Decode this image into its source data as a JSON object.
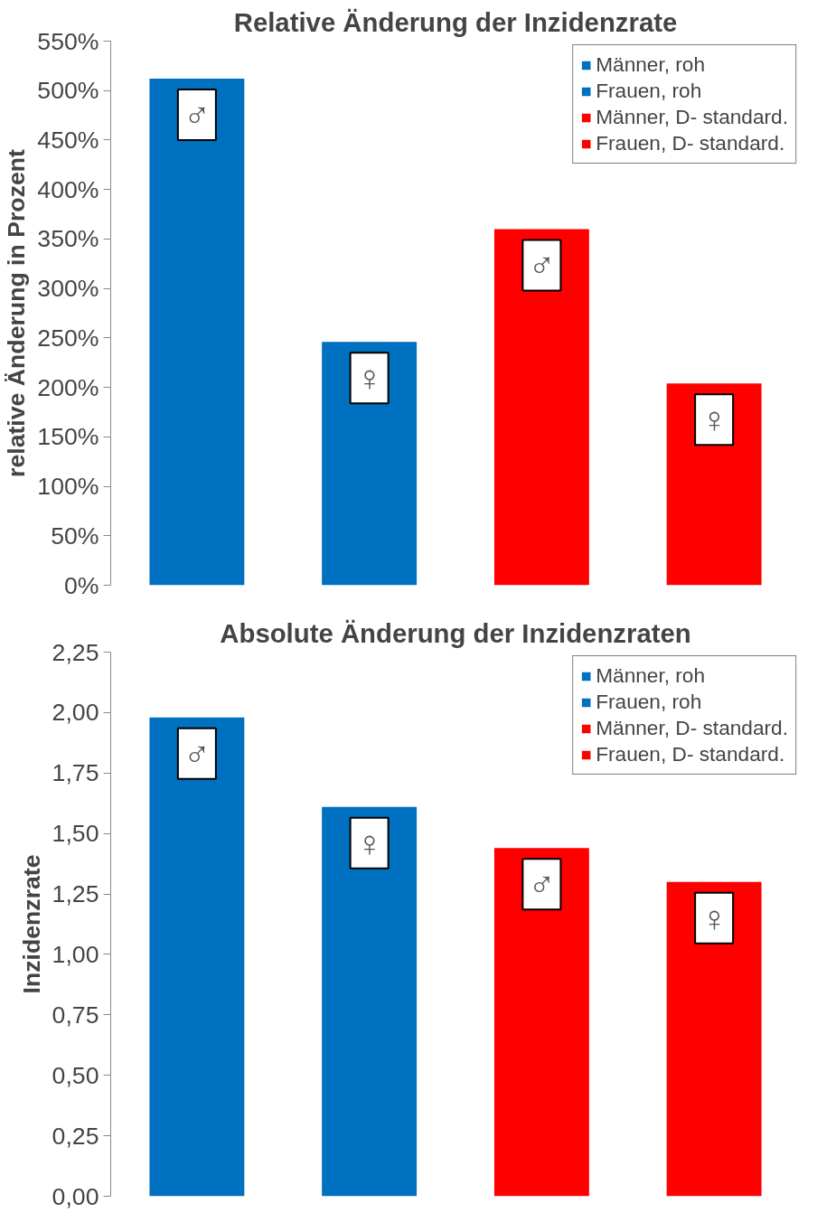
{
  "chart_data": [
    {
      "type": "bar",
      "stacked": true,
      "title": "Relative Änderung der Inzidenzrate",
      "ylabel": "relative Änderung in Prozent",
      "categories": [
        null,
        null,
        null,
        null
      ],
      "series": [
        {
          "name": "Männer, roh",
          "color": "#0070c0",
          "values": [
            512,
            0,
            0,
            0
          ]
        },
        {
          "name": "Frauen, roh",
          "color": "#0070c0",
          "values": [
            0,
            246,
            0,
            0
          ]
        },
        {
          "name": "Männer, D- standard.",
          "color": "#ff0000",
          "values": [
            0,
            0,
            360,
            0
          ]
        },
        {
          "name": "Frauen, D- standard.",
          "color": "#ff0000",
          "values": [
            0,
            0,
            0,
            204
          ]
        }
      ],
      "ylim": [
        0,
        550
      ],
      "yticks": [
        {
          "value": 0,
          "label": "0%"
        },
        {
          "value": 50,
          "label": "50%"
        },
        {
          "value": 100,
          "label": "100%"
        },
        {
          "value": 150,
          "label": "150%"
        },
        {
          "value": 200,
          "label": "200%"
        },
        {
          "value": 250,
          "label": "250%"
        },
        {
          "value": 300,
          "label": "300%"
        },
        {
          "value": 350,
          "label": "350%"
        },
        {
          "value": 400,
          "label": "400%"
        },
        {
          "value": 450,
          "label": "450%"
        },
        {
          "value": 500,
          "label": "500%"
        },
        {
          "value": 550,
          "label": "550%"
        }
      ],
      "annotations": [
        "♂",
        "♀",
        "♂",
        "♀"
      ],
      "legend": "top right",
      "tick_labels": "y"
    },
    {
      "type": "bar",
      "stacked": true,
      "title": "Absolute Änderung der Inzidenzraten",
      "ylabel": "Inzidenzrate",
      "categories": [
        null,
        null,
        null,
        null
      ],
      "series": [
        {
          "name": "Männer, roh",
          "color": "#0070c0",
          "values": [
            1.98,
            0,
            0,
            0
          ]
        },
        {
          "name": "Frauen, roh",
          "color": "#0070c0",
          "values": [
            0,
            1.61,
            0,
            0
          ]
        },
        {
          "name": "Männer, D- standard.",
          "color": "#ff0000",
          "values": [
            0,
            0,
            1.44,
            0
          ]
        },
        {
          "name": "Frauen, D- standard.",
          "color": "#ff0000",
          "values": [
            0,
            0,
            0,
            1.3
          ]
        }
      ],
      "ylim": [
        0,
        2.25
      ],
      "yticks": [
        {
          "value": 0,
          "label": "0,00"
        },
        {
          "value": 0.25,
          "label": "0,25"
        },
        {
          "value": 0.5,
          "label": "0,50"
        },
        {
          "value": 0.75,
          "label": "0,75"
        },
        {
          "value": 1,
          "label": "1,00"
        },
        {
          "value": 1.25,
          "label": "1,25"
        },
        {
          "value": 1.5,
          "label": "1,50"
        },
        {
          "value": 1.75,
          "label": "1,75"
        },
        {
          "value": 2,
          "label": "2,00"
        },
        {
          "value": 2.25,
          "label": "2,25"
        }
      ],
      "annotations": [
        "♂",
        "♀",
        "♂",
        "♀"
      ],
      "legend": "top right",
      "tick_labels": "y"
    }
  ]
}
